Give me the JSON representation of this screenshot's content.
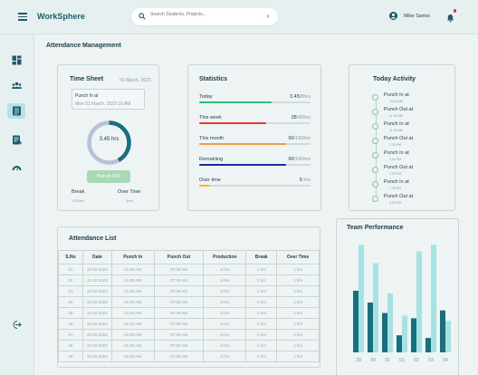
{
  "app": {
    "title": "WorkSphere"
  },
  "header": {
    "search_placeholder": "Search Students, Projects...",
    "user_name": "Miller Santos"
  },
  "sidebar": {
    "items": [
      {
        "icon": "dashboard-icon",
        "active": false
      },
      {
        "icon": "users-icon",
        "active": false
      },
      {
        "icon": "attendance-list-icon",
        "active": true
      },
      {
        "icon": "report-icon",
        "active": false
      },
      {
        "icon": "performance-gauge-icon",
        "active": false
      }
    ],
    "logout_icon": "logout-icon"
  },
  "page": {
    "title": "Attendance  Management"
  },
  "timesheet": {
    "title": "Time Sheet",
    "date": "01 March, 2023",
    "punch_in_label": "Punch In at",
    "punch_in_value": "Mon 01 March, 2023 10 AM",
    "hours": "3.45 hrs",
    "progress": 0.42,
    "punch_out_label": "Punch Out",
    "break_label": "Break",
    "break_value": "1.21hrs",
    "overtime_label": "Over Time",
    "overtime_value": "3hrs"
  },
  "statistics": {
    "title": "Statistics",
    "rows": [
      {
        "label": "Today",
        "value": "3.45",
        "total": "/8hrs",
        "fraction": 0.65,
        "color": "#27c07a"
      },
      {
        "label": "This week",
        "value": "28",
        "total": "/40hrs",
        "fraction": 0.6,
        "color": "#e53935"
      },
      {
        "label": "This month",
        "value": "90",
        "total": "/160hrs",
        "fraction": 0.78,
        "color": "#f39a45"
      },
      {
        "label": "Remaining",
        "value": "90",
        "total": "/160hrs",
        "fraction": 0.78,
        "color": "#1a2a9c"
      },
      {
        "label": "Over time",
        "value": "5",
        "total": " hrs",
        "fraction": 0.1,
        "color": "#f5bb1d"
      }
    ]
  },
  "activity": {
    "title": "Today Activity",
    "items": [
      {
        "label": "Punch In at",
        "time": "10.00 AM"
      },
      {
        "label": "Punch Out at",
        "time": "11.00 AM"
      },
      {
        "label": "Punch In at",
        "time": "11.15 AM"
      },
      {
        "label": "Punch Out at",
        "time": "1.30 PM"
      },
      {
        "label": "Punch In at",
        "time": "2.00 PM"
      },
      {
        "label": "Punch Out at",
        "time": "7.30 PM"
      },
      {
        "label": "Punch In at",
        "time": "7.45 PM"
      },
      {
        "label": "Punch Out at",
        "time": "9.00 PM"
      }
    ]
  },
  "attendance": {
    "title": "Attendance List",
    "columns": [
      "S.No",
      "Date",
      "Punch In",
      "Punch Out",
      "Production",
      "Break",
      "Over Time"
    ],
    "rows": [
      [
        "01",
        "20.02.2023",
        "01:00 AM",
        "07:00 AM",
        "8 hrs",
        "1 hrs",
        "1 hrs"
      ],
      [
        "02",
        "21.02.2023",
        "01:00 AM",
        "07:00 AM",
        "8 hrs",
        "1 hrs",
        "1 hrs"
      ],
      [
        "03",
        "22.02.2023",
        "01:00 AM",
        "07:00 AM",
        "8 hrs",
        "1 hrs",
        "1 hrs"
      ],
      [
        "04",
        "23.02.2023",
        "01:00 AM",
        "07:00 AM",
        "8 hrs",
        "1 hrs",
        "1 hrs"
      ],
      [
        "05",
        "24.02.2023",
        "01:00 AM",
        "07:00 AM",
        "8 hrs",
        "1 hrs",
        "1 hrs"
      ],
      [
        "06",
        "25.02.2023",
        "01:00 AM",
        "07:00 AM",
        "8 hrs",
        "1 hrs",
        "1 hrs"
      ],
      [
        "07",
        "26.02.2023",
        "01:00 AM",
        "07:00 AM",
        "8 hrs",
        "1 hrs",
        "1 hrs"
      ],
      [
        "08",
        "27.02.2023",
        "01:00 AM",
        "07:00 AM",
        "8 hrs",
        "1 hrs",
        "1 hrs"
      ],
      [
        "09",
        "28.02.2023",
        "01:00 AM",
        "07:00 AM",
        "8 hrs",
        "1 hrs",
        "1 hrs"
      ]
    ]
  },
  "colors": {
    "accent": "#1d5d6b",
    "bar_dark": "#18707f",
    "bar_light": "#a6e2e4",
    "timeline": "#7fc9a0"
  },
  "chart_data": {
    "type": "bar",
    "title": "Team Performance",
    "categories": [
      "29",
      "30",
      "31",
      "01",
      "02",
      "03",
      "04"
    ],
    "series": [
      {
        "values": [
          47,
          38,
          30,
          13,
          26,
          11,
          32
        ]
      },
      {
        "values": [
          82,
          68,
          45,
          28,
          77,
          82,
          24
        ]
      }
    ],
    "ylim": [
      0,
      85
    ],
    "legend": "none",
    "grid": false
  }
}
